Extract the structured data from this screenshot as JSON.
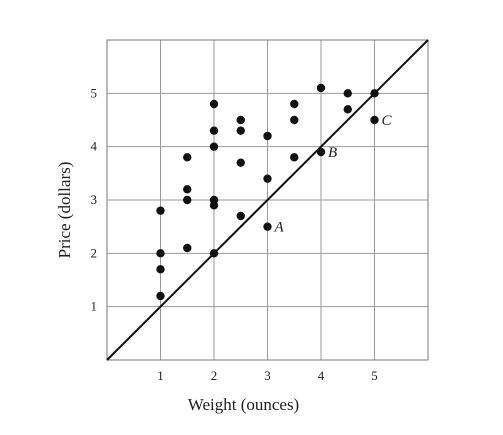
{
  "chart_data": {
    "type": "scatter",
    "xlabel": "Weight (ounces)",
    "ylabel": "Price (dollars)",
    "xlim": [
      0,
      5
    ],
    "ylim": [
      0,
      6
    ],
    "x_ticks": [
      1,
      2,
      3,
      4,
      5
    ],
    "y_ticks": [
      1,
      2,
      3,
      4,
      5
    ],
    "grid": true,
    "points": [
      {
        "x": 1,
        "y": 1.2
      },
      {
        "x": 1,
        "y": 1.7
      },
      {
        "x": 1,
        "y": 2.0
      },
      {
        "x": 1,
        "y": 2.8
      },
      {
        "x": 1.5,
        "y": 2.1
      },
      {
        "x": 1.5,
        "y": 3.0
      },
      {
        "x": 1.5,
        "y": 3.2
      },
      {
        "x": 1.5,
        "y": 3.8
      },
      {
        "x": 2,
        "y": 2.0
      },
      {
        "x": 2,
        "y": 2.9
      },
      {
        "x": 2,
        "y": 3.0
      },
      {
        "x": 2,
        "y": 4.0
      },
      {
        "x": 2,
        "y": 4.3
      },
      {
        "x": 2,
        "y": 4.8
      },
      {
        "x": 2.5,
        "y": 2.7
      },
      {
        "x": 2.5,
        "y": 3.7
      },
      {
        "x": 2.5,
        "y": 4.3
      },
      {
        "x": 2.5,
        "y": 4.5
      },
      {
        "x": 3,
        "y": 2.5,
        "label": "A"
      },
      {
        "x": 3,
        "y": 3.4
      },
      {
        "x": 3,
        "y": 4.2
      },
      {
        "x": 3.5,
        "y": 3.8
      },
      {
        "x": 3.5,
        "y": 4.5
      },
      {
        "x": 3.5,
        "y": 4.8
      },
      {
        "x": 4,
        "y": 3.9,
        "label": "B"
      },
      {
        "x": 4,
        "y": 5.1
      },
      {
        "x": 4.5,
        "y": 4.7
      },
      {
        "x": 4.5,
        "y": 5.0
      },
      {
        "x": 5,
        "y": 4.5,
        "label": "C"
      },
      {
        "x": 5,
        "y": 5.0
      }
    ],
    "line": {
      "x1": 0,
      "y1": 0,
      "x2": 5,
      "y2": 5
    }
  }
}
